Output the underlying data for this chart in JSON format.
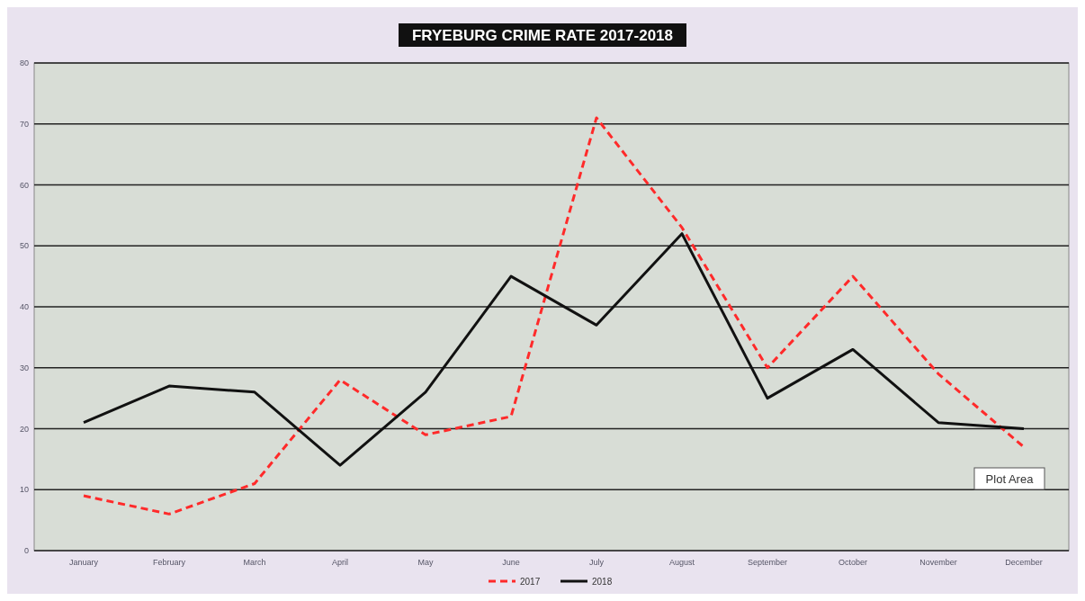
{
  "chart_data": {
    "type": "line",
    "title": "FRYEBURG CRIME RATE 2017-2018",
    "categories": [
      "January",
      "February",
      "March",
      "April",
      "May",
      "June",
      "July",
      "August",
      "September",
      "October",
      "November",
      "December"
    ],
    "series": [
      {
        "name": "2017",
        "color": "#ff2a2a",
        "line_style": "dashed",
        "values": [
          9,
          6,
          11,
          28,
          19,
          22,
          71,
          53,
          30,
          45,
          29,
          17
        ]
      },
      {
        "name": "2018",
        "color": "#111111",
        "line_style": "solid",
        "values": [
          21,
          27,
          26,
          14,
          26,
          45,
          37,
          52,
          25,
          33,
          21,
          20
        ]
      }
    ],
    "ylim": [
      0,
      80
    ],
    "yticks": [
      0,
      10,
      20,
      30,
      40,
      50,
      60,
      70,
      80
    ],
    "grid": "y",
    "legend": "bottom",
    "annotations": [
      "Plot Area"
    ]
  }
}
